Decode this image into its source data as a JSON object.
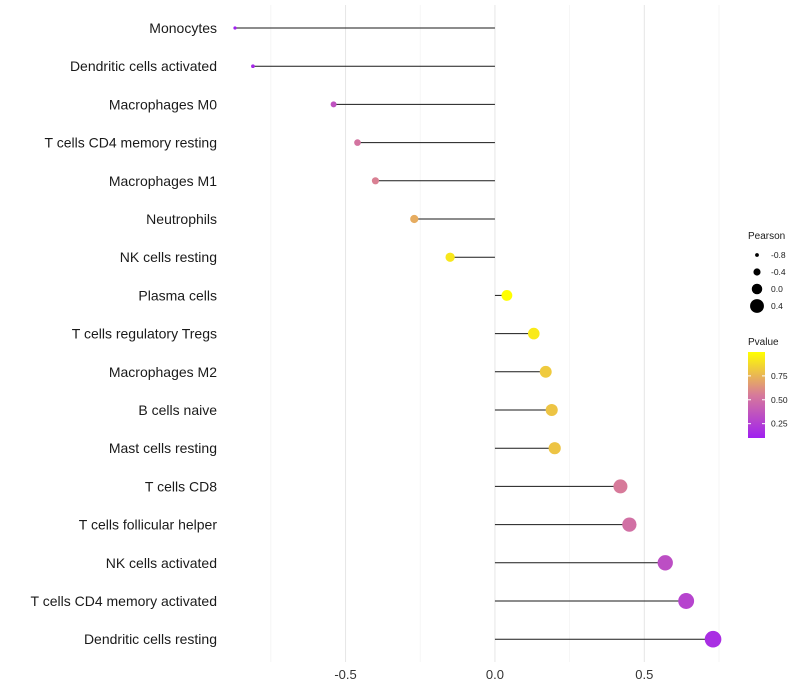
{
  "chart_data": {
    "type": "lollipop",
    "categories": [
      "Monocytes",
      "Dendritic cells activated",
      "Macrophages M0",
      "T cells CD4 memory resting",
      "Macrophages M1",
      "Neutrophils",
      "NK cells resting",
      "Plasma cells",
      "T cells regulatory  Tregs ",
      "Macrophages M2",
      "B cells naive",
      "Mast cells resting",
      "T cells CD8",
      "T cells follicular helper",
      "NK cells activated",
      "T cells CD4 memory activated",
      "Dendritic cells resting"
    ],
    "values": [
      -0.87,
      -0.81,
      -0.54,
      -0.46,
      -0.4,
      -0.27,
      -0.15,
      0.04,
      0.13,
      0.17,
      0.19,
      0.2,
      0.42,
      0.45,
      0.57,
      0.64,
      0.73
    ],
    "pvalues": [
      0.1,
      0.14,
      0.35,
      0.52,
      0.57,
      0.72,
      0.92,
      1.0,
      0.93,
      0.82,
      0.8,
      0.8,
      0.55,
      0.5,
      0.33,
      0.28,
      0.17
    ],
    "xlim": [
      -0.87,
      0.77
    ],
    "xticks": [
      -0.5,
      0.0,
      0.5
    ],
    "xtick_labels": [
      "-0.5",
      "0.0",
      "0.5"
    ],
    "grid": true,
    "legend_size": {
      "title": "Pearson",
      "values": [
        -0.8,
        -0.4,
        0.0,
        0.4
      ],
      "labels": [
        "-0.8",
        "-0.4",
        "0.0",
        "0.4"
      ]
    },
    "legend_color": {
      "title": "Pvalue",
      "range": [
        0.1,
        1.0
      ],
      "ticks": [
        0.75,
        0.5,
        0.25
      ],
      "tick_labels": [
        "0.75",
        "0.50",
        "0.25"
      ],
      "low_color": "#a020f0",
      "high_color": "#ffff00"
    },
    "legend_position": "right"
  }
}
